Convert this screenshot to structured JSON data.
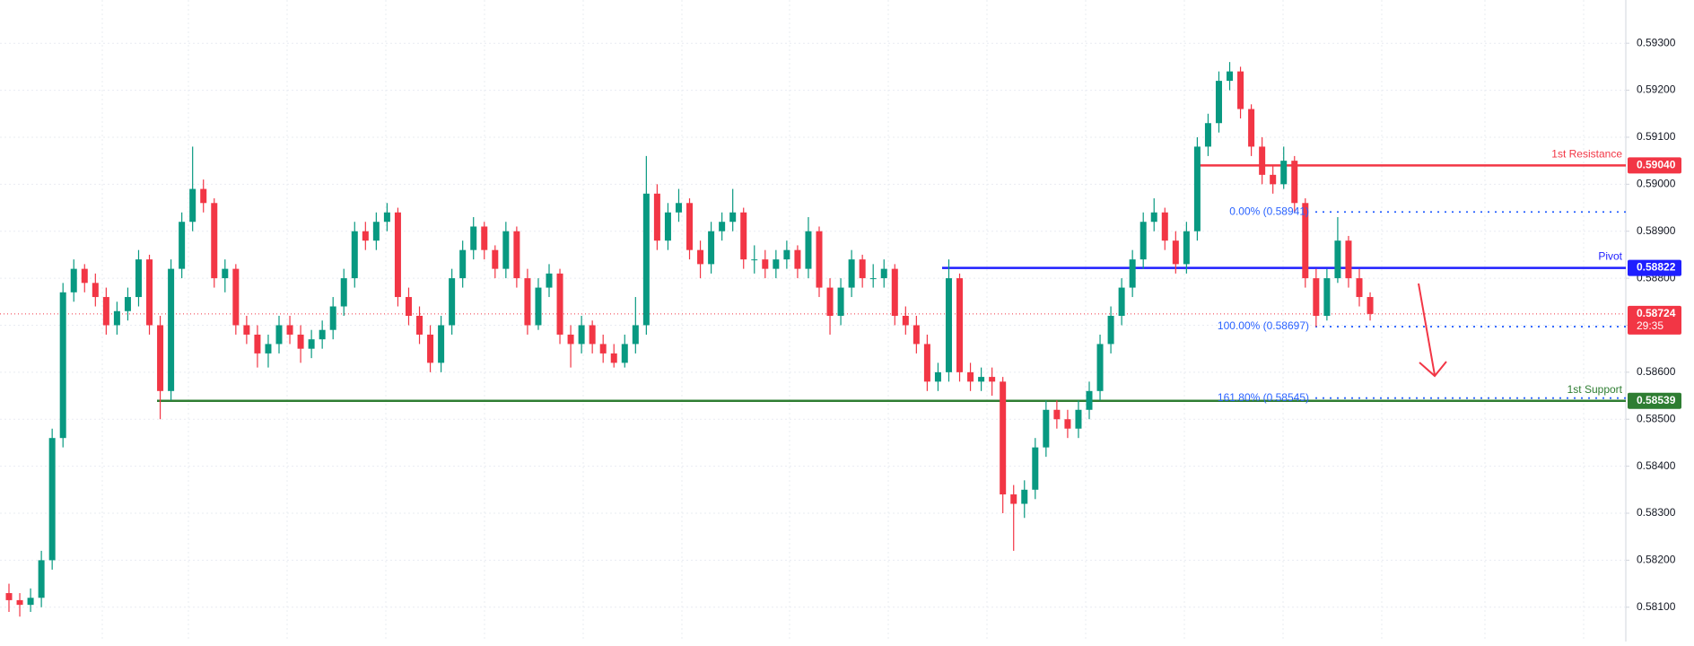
{
  "chart_data": {
    "type": "candlestick",
    "up_color": "#089981",
    "down_color": "#f23645",
    "ylim": [
      0.58027,
      0.59392
    ],
    "yticks": [
      {
        "value": 0.581,
        "label": "0.58100"
      },
      {
        "value": 0.582,
        "label": "0.58200"
      },
      {
        "value": 0.583,
        "label": "0.58300"
      },
      {
        "value": 0.584,
        "label": "0.58400"
      },
      {
        "value": 0.585,
        "label": "0.58500"
      },
      {
        "value": 0.586,
        "label": "0.58600"
      },
      {
        "value": 0.587,
        "label": "0.58700"
      },
      {
        "value": 0.588,
        "label": "0.58800"
      },
      {
        "value": 0.589,
        "label": "0.58900"
      },
      {
        "value": 0.59,
        "label": "0.59000"
      },
      {
        "value": 0.591,
        "label": "0.59100"
      },
      {
        "value": 0.592,
        "label": "0.59200"
      },
      {
        "value": 0.593,
        "label": "0.59300"
      }
    ],
    "grid": true,
    "ohlc": [
      [
        0.5813,
        0.5815,
        0.5809,
        0.58115
      ],
      [
        0.58115,
        0.5813,
        0.5808,
        0.58105
      ],
      [
        0.58105,
        0.5814,
        0.5809,
        0.5812
      ],
      [
        0.5812,
        0.5822,
        0.581,
        0.582
      ],
      [
        0.582,
        0.5848,
        0.5818,
        0.5846
      ],
      [
        0.5846,
        0.5879,
        0.5844,
        0.5877
      ],
      [
        0.5877,
        0.5884,
        0.5875,
        0.5882
      ],
      [
        0.5882,
        0.5883,
        0.5877,
        0.5879
      ],
      [
        0.5879,
        0.5881,
        0.5874,
        0.5876
      ],
      [
        0.5876,
        0.5878,
        0.5868,
        0.587
      ],
      [
        0.587,
        0.5875,
        0.5868,
        0.5873
      ],
      [
        0.5873,
        0.5878,
        0.5871,
        0.5876
      ],
      [
        0.5876,
        0.5886,
        0.5874,
        0.5884
      ],
      [
        0.5884,
        0.5885,
        0.5868,
        0.587
      ],
      [
        0.587,
        0.5872,
        0.585,
        0.5856
      ],
      [
        0.5856,
        0.5884,
        0.5854,
        0.5882
      ],
      [
        0.5882,
        0.5894,
        0.588,
        0.5892
      ],
      [
        0.5892,
        0.5908,
        0.589,
        0.5899
      ],
      [
        0.5899,
        0.5901,
        0.5894,
        0.5896
      ],
      [
        0.5896,
        0.5897,
        0.5878,
        0.588
      ],
      [
        0.588,
        0.5884,
        0.5877,
        0.5882
      ],
      [
        0.5882,
        0.5883,
        0.5868,
        0.587
      ],
      [
        0.587,
        0.5872,
        0.5866,
        0.5868
      ],
      [
        0.5868,
        0.587,
        0.5861,
        0.5864
      ],
      [
        0.5864,
        0.5868,
        0.5861,
        0.5866
      ],
      [
        0.5866,
        0.5872,
        0.5864,
        0.587
      ],
      [
        0.587,
        0.5872,
        0.5866,
        0.5868
      ],
      [
        0.5868,
        0.587,
        0.5862,
        0.5865
      ],
      [
        0.5865,
        0.5869,
        0.5863,
        0.5867
      ],
      [
        0.5867,
        0.5871,
        0.5865,
        0.5869
      ],
      [
        0.5869,
        0.5876,
        0.5867,
        0.5874
      ],
      [
        0.5874,
        0.5882,
        0.5872,
        0.588
      ],
      [
        0.588,
        0.5892,
        0.5878,
        0.589
      ],
      [
        0.589,
        0.5892,
        0.5886,
        0.5888
      ],
      [
        0.5888,
        0.5894,
        0.5886,
        0.5892
      ],
      [
        0.5892,
        0.5896,
        0.589,
        0.5894
      ],
      [
        0.5894,
        0.5895,
        0.5874,
        0.5876
      ],
      [
        0.5876,
        0.5878,
        0.587,
        0.5872
      ],
      [
        0.5872,
        0.5874,
        0.5866,
        0.5868
      ],
      [
        0.5868,
        0.587,
        0.586,
        0.5862
      ],
      [
        0.5862,
        0.5872,
        0.586,
        0.587
      ],
      [
        0.587,
        0.5882,
        0.5868,
        0.588
      ],
      [
        0.588,
        0.5888,
        0.5878,
        0.5886
      ],
      [
        0.5886,
        0.5893,
        0.5884,
        0.5891
      ],
      [
        0.5891,
        0.5892,
        0.5884,
        0.5886
      ],
      [
        0.5886,
        0.5887,
        0.588,
        0.5882
      ],
      [
        0.5882,
        0.5892,
        0.588,
        0.589
      ],
      [
        0.589,
        0.5891,
        0.5878,
        0.588
      ],
      [
        0.588,
        0.5882,
        0.5868,
        0.587
      ],
      [
        0.587,
        0.588,
        0.5869,
        0.5878
      ],
      [
        0.5878,
        0.5883,
        0.5876,
        0.5881
      ],
      [
        0.5881,
        0.5882,
        0.5866,
        0.5868
      ],
      [
        0.5868,
        0.587,
        0.5861,
        0.5866
      ],
      [
        0.5866,
        0.5872,
        0.5864,
        0.587
      ],
      [
        0.587,
        0.5871,
        0.5864,
        0.5866
      ],
      [
        0.5866,
        0.5868,
        0.5862,
        0.5864
      ],
      [
        0.5864,
        0.5866,
        0.5861,
        0.5862
      ],
      [
        0.5862,
        0.5868,
        0.5861,
        0.5866
      ],
      [
        0.5866,
        0.5876,
        0.5864,
        0.587
      ],
      [
        0.587,
        0.5906,
        0.5868,
        0.5898
      ],
      [
        0.5898,
        0.59,
        0.5886,
        0.5888
      ],
      [
        0.5888,
        0.5896,
        0.5886,
        0.5894
      ],
      [
        0.5894,
        0.5899,
        0.5892,
        0.5896
      ],
      [
        0.5896,
        0.5897,
        0.5884,
        0.5886
      ],
      [
        0.5886,
        0.5888,
        0.588,
        0.5883
      ],
      [
        0.5883,
        0.5892,
        0.5881,
        0.589
      ],
      [
        0.589,
        0.5894,
        0.5888,
        0.5892
      ],
      [
        0.5892,
        0.5899,
        0.589,
        0.5894
      ],
      [
        0.5894,
        0.5895,
        0.5882,
        0.5884
      ],
      [
        0.5884,
        0.5887,
        0.5881,
        0.5884
      ],
      [
        0.5884,
        0.5886,
        0.588,
        0.5882
      ],
      [
        0.5882,
        0.5886,
        0.588,
        0.5884
      ],
      [
        0.5884,
        0.5888,
        0.5882,
        0.5886
      ],
      [
        0.5886,
        0.5887,
        0.588,
        0.5882
      ],
      [
        0.5882,
        0.5893,
        0.588,
        0.589
      ],
      [
        0.589,
        0.5891,
        0.5876,
        0.5878
      ],
      [
        0.5878,
        0.588,
        0.5868,
        0.5872
      ],
      [
        0.5872,
        0.588,
        0.587,
        0.5878
      ],
      [
        0.5878,
        0.5886,
        0.5876,
        0.5884
      ],
      [
        0.5884,
        0.5885,
        0.5878,
        0.588
      ],
      [
        0.588,
        0.5883,
        0.5878,
        0.588
      ],
      [
        0.588,
        0.5884,
        0.5878,
        0.5882
      ],
      [
        0.5882,
        0.5883,
        0.587,
        0.5872
      ],
      [
        0.5872,
        0.5874,
        0.5868,
        0.587
      ],
      [
        0.587,
        0.5872,
        0.5864,
        0.5866
      ],
      [
        0.5866,
        0.5868,
        0.5856,
        0.5858
      ],
      [
        0.5858,
        0.5862,
        0.5856,
        0.586
      ],
      [
        0.586,
        0.5884,
        0.5858,
        0.588
      ],
      [
        0.588,
        0.5881,
        0.5858,
        0.586
      ],
      [
        0.586,
        0.5862,
        0.5856,
        0.5858
      ],
      [
        0.5858,
        0.5861,
        0.5856,
        0.5859
      ],
      [
        0.5859,
        0.5861,
        0.5855,
        0.5858
      ],
      [
        0.5858,
        0.5859,
        0.583,
        0.5834
      ],
      [
        0.5834,
        0.5836,
        0.5822,
        0.5832
      ],
      [
        0.5832,
        0.5837,
        0.5829,
        0.5835
      ],
      [
        0.5835,
        0.5846,
        0.5833,
        0.5844
      ],
      [
        0.5844,
        0.5854,
        0.5842,
        0.5852
      ],
      [
        0.5852,
        0.5854,
        0.5848,
        0.585
      ],
      [
        0.585,
        0.5852,
        0.5846,
        0.5848
      ],
      [
        0.5848,
        0.5854,
        0.5846,
        0.5852
      ],
      [
        0.5852,
        0.5858,
        0.585,
        0.5856
      ],
      [
        0.5856,
        0.5868,
        0.5854,
        0.5866
      ],
      [
        0.5866,
        0.5874,
        0.5864,
        0.5872
      ],
      [
        0.5872,
        0.588,
        0.587,
        0.5878
      ],
      [
        0.5878,
        0.5886,
        0.5876,
        0.5884
      ],
      [
        0.5884,
        0.5894,
        0.5882,
        0.5892
      ],
      [
        0.5892,
        0.5897,
        0.589,
        0.5894
      ],
      [
        0.5894,
        0.5895,
        0.5886,
        0.5888
      ],
      [
        0.5888,
        0.589,
        0.5881,
        0.5883
      ],
      [
        0.5883,
        0.5892,
        0.5881,
        0.589
      ],
      [
        0.589,
        0.591,
        0.5888,
        0.5908
      ],
      [
        0.5908,
        0.5915,
        0.5906,
        0.5913
      ],
      [
        0.5913,
        0.5924,
        0.5911,
        0.5922
      ],
      [
        0.5922,
        0.5926,
        0.592,
        0.5924
      ],
      [
        0.5924,
        0.5925,
        0.5914,
        0.5916
      ],
      [
        0.5916,
        0.5917,
        0.5906,
        0.5908
      ],
      [
        0.5908,
        0.591,
        0.59,
        0.5902
      ],
      [
        0.5902,
        0.5904,
        0.5898,
        0.59
      ],
      [
        0.59,
        0.5908,
        0.5899,
        0.5905
      ],
      [
        0.5905,
        0.5906,
        0.5894,
        0.5896
      ],
      [
        0.5896,
        0.5897,
        0.5878,
        0.588
      ],
      [
        0.588,
        0.5882,
        0.58697,
        0.5872
      ],
      [
        0.5872,
        0.5882,
        0.5871,
        0.588
      ],
      [
        0.588,
        0.5893,
        0.5879,
        0.5888
      ],
      [
        0.5888,
        0.5889,
        0.5878,
        0.588
      ],
      [
        0.588,
        0.5882,
        0.5874,
        0.5876
      ],
      [
        0.5876,
        0.5877,
        0.5871,
        0.58724
      ]
    ],
    "levels": [
      {
        "label": "1st Resistance",
        "value": 0.5904,
        "value_label": "0.59040",
        "color": "#f23645"
      },
      {
        "label": "Pivot",
        "value": 0.58822,
        "value_label": "0.58822",
        "color": "#1f1fff"
      },
      {
        "label": "1st Support",
        "value": 0.58539,
        "value_label": "0.58539",
        "color": "#2e7d32"
      }
    ],
    "fib_levels": [
      {
        "label": "0.00% (0.58941)",
        "value": 0.58941
      },
      {
        "label": "100.00% (0.58697)",
        "value": 0.58697
      },
      {
        "label": "161.80% (0.58545)",
        "value": 0.58545
      }
    ],
    "fib_color": "#2962ff",
    "last_price": {
      "value": 0.58724,
      "value_label": "0.58724",
      "countdown": "29:35",
      "color": "#f23645"
    }
  }
}
